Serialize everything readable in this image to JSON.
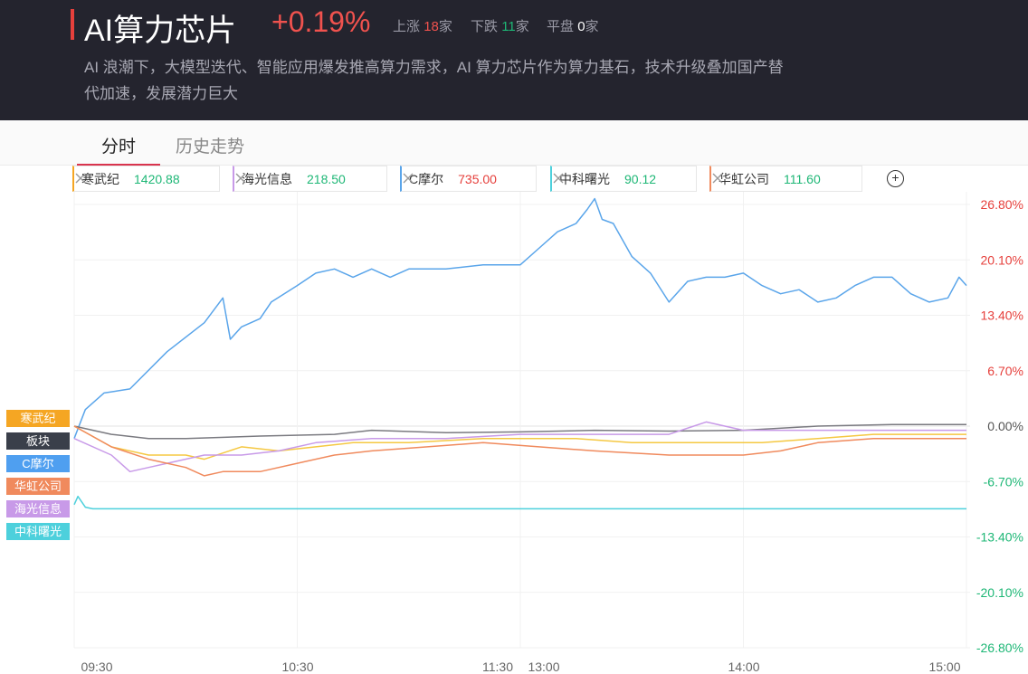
{
  "header": {
    "title": "AI算力芯片",
    "change": "+0.19%",
    "up_label": "上涨",
    "up_count": "18",
    "up_unit": "家",
    "down_label": "下跌",
    "down_count": "11",
    "down_unit": "家",
    "flat_label": "平盘",
    "flat_count": "0",
    "flat_unit": "家",
    "description": "AI 浪潮下，大模型迭代、智能应用爆发推高算力需求，AI 算力芯片作为算力基石，技术升级叠加国产替代加速，发展潜力巨大"
  },
  "tabs": [
    {
      "label": "分时",
      "active": true
    },
    {
      "label": "历史走势",
      "active": false
    }
  ],
  "legend": [
    {
      "name": "寒武纪",
      "value": "1420.88",
      "color": "#f5a623",
      "value_color": "#1eb776"
    },
    {
      "name": "海光信息",
      "value": "218.50",
      "color": "#c89ae8",
      "value_color": "#1eb776"
    },
    {
      "name": "C摩尔",
      "value": "735.00",
      "color": "#5aa5ea",
      "value_color": "#e6403c"
    },
    {
      "name": "中科曙光",
      "value": "90.12",
      "color": "#4dd0dc",
      "value_color": "#1eb776"
    },
    {
      "name": "华虹公司",
      "value": "111.60",
      "color": "#f08a5d",
      "value_color": "#1eb776"
    }
  ],
  "add_icon": "plus-circle-icon",
  "close_icon": "close-icon",
  "tags": [
    {
      "label": "寒武纪",
      "color": "#f5a623"
    },
    {
      "label": "板块",
      "color": "#3a3f4a"
    },
    {
      "label": "C摩尔",
      "color": "#4f9ff0"
    },
    {
      "label": "华虹公司",
      "color": "#f08a5d"
    },
    {
      "label": "海光信息",
      "color": "#c89ae8"
    },
    {
      "label": "中科曙光",
      "color": "#4dd0dc"
    }
  ],
  "chart_data": {
    "type": "line",
    "x_ticks": [
      "09:30",
      "10:30",
      "11:30",
      "13:00",
      "14:00",
      "15:00"
    ],
    "y_ticks": [
      "26.80%",
      "20.10%",
      "13.40%",
      "6.70%",
      "0.00%",
      "-6.70%",
      "-13.40%",
      "-20.10%",
      "-26.80%"
    ],
    "ylim": [
      -26.8,
      26.8
    ],
    "x_unit": "trading minutes from open (0-240)",
    "y_unit": "percent change",
    "grid": true,
    "series": [
      {
        "name": "C摩尔",
        "color": "#5aa5ea",
        "x": [
          0,
          3,
          8,
          15,
          25,
          35,
          40,
          42,
          45,
          50,
          53,
          60,
          65,
          70,
          75,
          80,
          85,
          90,
          100,
          110,
          120,
          125,
          130,
          135,
          138,
          140,
          142,
          145,
          150,
          155,
          160,
          165,
          170,
          175,
          180,
          185,
          190,
          195,
          200,
          205,
          210,
          215,
          220,
          225,
          230,
          235,
          238,
          240
        ],
        "y": [
          -1.5,
          2.0,
          4.0,
          4.5,
          9.0,
          12.5,
          15.5,
          10.5,
          12.0,
          13.0,
          15.0,
          17.0,
          18.5,
          19.0,
          18.0,
          19.0,
          18.0,
          19.0,
          19.0,
          19.5,
          19.5,
          21.5,
          23.5,
          24.5,
          26.2,
          27.5,
          25.0,
          24.5,
          20.5,
          18.5,
          15.0,
          17.5,
          18.0,
          18.0,
          18.5,
          17.0,
          16.0,
          16.5,
          15.0,
          15.5,
          17.0,
          18.0,
          18.0,
          16.0,
          15.0,
          15.5,
          18.0,
          17.0
        ]
      },
      {
        "name": "板块",
        "color": "#7a7a80",
        "x": [
          0,
          10,
          20,
          30,
          50,
          70,
          80,
          100,
          120,
          140,
          160,
          180,
          200,
          220,
          240
        ],
        "y": [
          0.0,
          -1.0,
          -1.5,
          -1.5,
          -1.2,
          -1.0,
          -0.5,
          -0.8,
          -0.7,
          -0.5,
          -0.6,
          -0.5,
          0.0,
          0.2,
          0.2
        ]
      },
      {
        "name": "寒武纪",
        "color": "#f5c842",
        "x": [
          0,
          10,
          20,
          30,
          35,
          45,
          55,
          65,
          75,
          90,
          110,
          125,
          135,
          150,
          170,
          185,
          200,
          215,
          230,
          240
        ],
        "y": [
          0.0,
          -2.5,
          -3.5,
          -3.5,
          -4.0,
          -2.5,
          -3.0,
          -2.5,
          -2.0,
          -2.0,
          -1.5,
          -1.5,
          -1.5,
          -2.0,
          -2.0,
          -2.0,
          -1.5,
          -1.0,
          -1.0,
          -1.0
        ]
      },
      {
        "name": "海光信息",
        "color": "#c89ae8",
        "x": [
          0,
          10,
          15,
          20,
          25,
          35,
          45,
          55,
          65,
          80,
          100,
          120,
          140,
          160,
          170,
          180,
          195,
          210,
          225,
          240
        ],
        "y": [
          -1.5,
          -3.5,
          -5.5,
          -5.0,
          -4.5,
          -3.5,
          -3.5,
          -3.0,
          -2.0,
          -1.5,
          -1.5,
          -1.0,
          -1.0,
          -1.0,
          0.5,
          -0.5,
          -0.5,
          -0.5,
          -0.5,
          -0.5
        ]
      },
      {
        "name": "华虹公司",
        "color": "#f08a5d",
        "x": [
          0,
          10,
          20,
          30,
          35,
          40,
          50,
          60,
          70,
          80,
          95,
          110,
          125,
          140,
          160,
          180,
          190,
          200,
          215,
          230,
          240
        ],
        "y": [
          0.0,
          -2.5,
          -4.0,
          -5.0,
          -6.0,
          -5.5,
          -5.5,
          -4.5,
          -3.5,
          -3.0,
          -2.5,
          -2.0,
          -2.5,
          -3.0,
          -3.5,
          -3.5,
          -3.0,
          -2.0,
          -1.5,
          -1.5,
          -1.5
        ]
      },
      {
        "name": "中科曙光",
        "color": "#4dd0dc",
        "x": [
          0,
          1,
          3,
          5,
          240
        ],
        "y": [
          -9.5,
          -8.5,
          -9.8,
          -10.0,
          -10.0
        ]
      }
    ]
  }
}
